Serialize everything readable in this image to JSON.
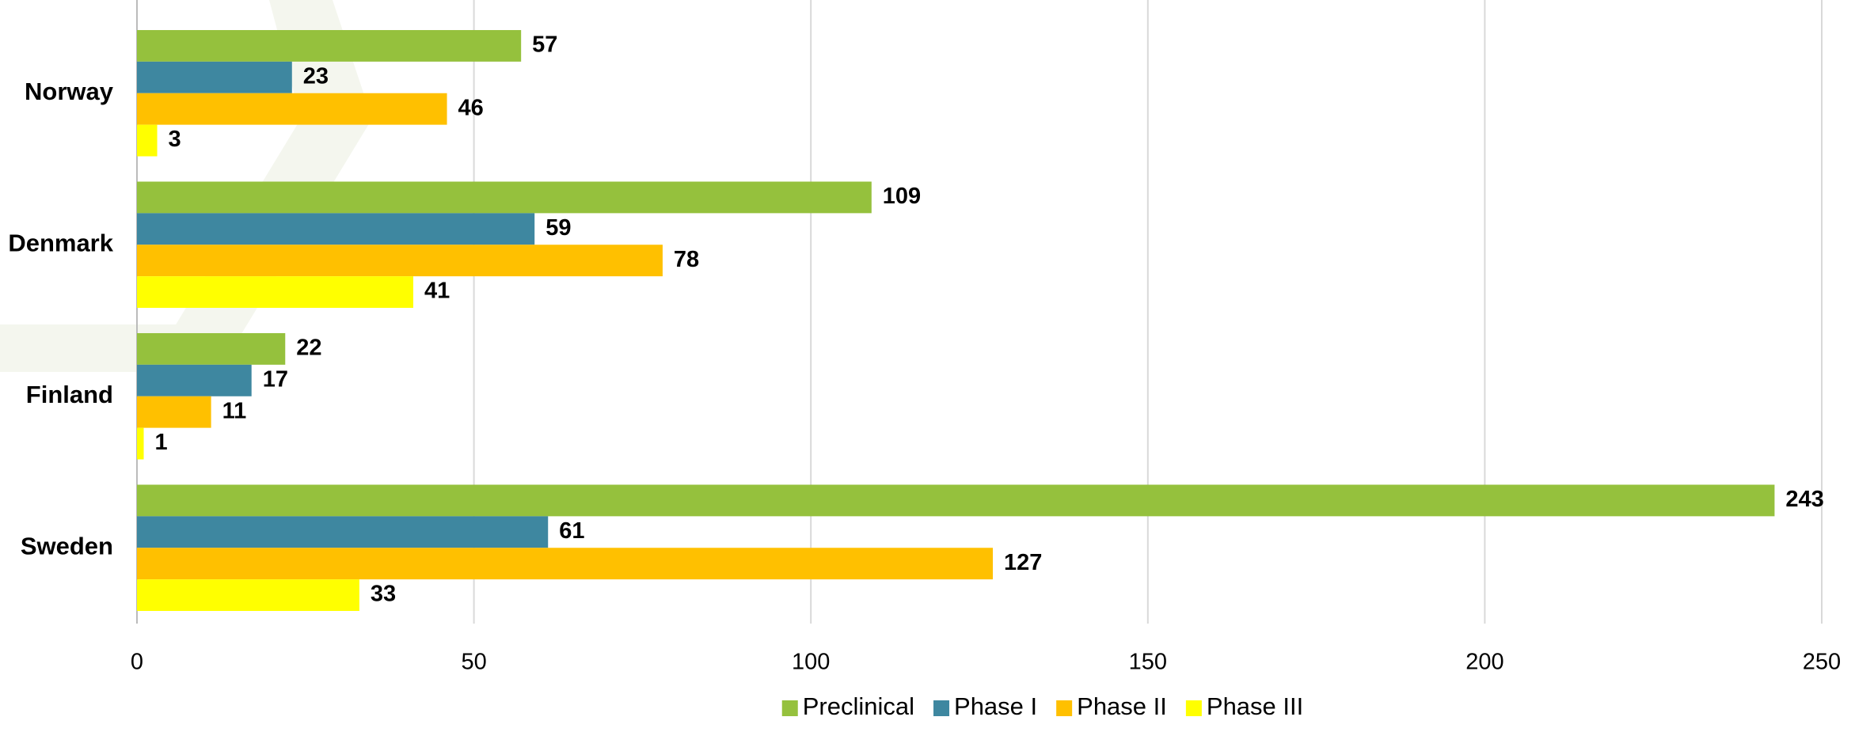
{
  "chart_data": {
    "type": "bar",
    "orientation": "horizontal",
    "categories": [
      "Norway",
      "Denmark",
      "Finland",
      "Sweden"
    ],
    "series": [
      {
        "name": "Preclinical",
        "color": "#95c13d",
        "values": [
          57,
          109,
          22,
          243
        ]
      },
      {
        "name": "Phase I",
        "color": "#3e87a0",
        "values": [
          23,
          59,
          17,
          61
        ]
      },
      {
        "name": "Phase II",
        "color": "#ffc000",
        "values": [
          46,
          78,
          11,
          127
        ]
      },
      {
        "name": "Phase III",
        "color": "#ffff00",
        "values": [
          3,
          41,
          1,
          33
        ]
      }
    ],
    "xlim": [
      0,
      250
    ],
    "xticks": [
      0,
      50,
      100,
      150,
      200,
      250
    ],
    "grid": true,
    "legend": "bottom"
  }
}
